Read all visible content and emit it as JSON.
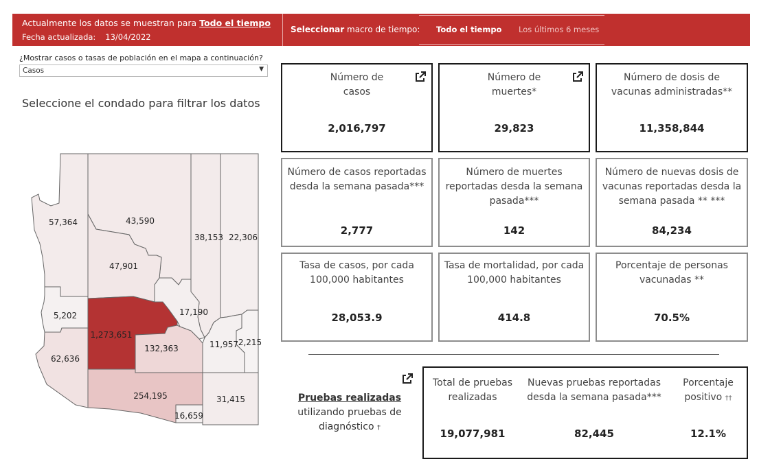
{
  "header": {
    "shown_prefix": "Actualmente los datos se muestran para ",
    "shown_period": "Todo el tiempo",
    "updated_label": "Fecha actualizada:",
    "updated_date": "13/04/2022",
    "select_bold": "Seleccionar",
    "select_rest": " macro de tiempo:",
    "options": [
      "Todo el tiempo",
      "Los últimos 6 meses"
    ],
    "selected_option": "Todo el tiempo"
  },
  "map_mode": {
    "label": "¿Mostrar casos o tasas de población en el mapa a continuación?",
    "value": "Casos"
  },
  "filter_title": "Seleccione el condado para filtrar los datos",
  "map": {
    "counties": [
      {
        "id": "mohave",
        "value": "57,364",
        "fill": "#f3ebeb"
      },
      {
        "id": "coconino",
        "value": "43,590",
        "fill": "#f3eaea"
      },
      {
        "id": "navajo",
        "value": "38,153",
        "fill": "#f3ebeb"
      },
      {
        "id": "apache",
        "value": "22,306",
        "fill": "#f4eeee"
      },
      {
        "id": "yavapai",
        "value": "47,901",
        "fill": "#f2e7e7"
      },
      {
        "id": "la-paz",
        "value": "5,202",
        "fill": "#f5f1f1"
      },
      {
        "id": "maricopa",
        "value": "1,273,651",
        "fill": "#b43333"
      },
      {
        "id": "gila",
        "value": "17,190",
        "fill": "#f4efef"
      },
      {
        "id": "yuma",
        "value": "62,636",
        "fill": "#f1e2e2"
      },
      {
        "id": "pinal",
        "value": "132,363",
        "fill": "#eed7d7"
      },
      {
        "id": "graham",
        "value": "11,957",
        "fill": "#f4f0f0"
      },
      {
        "id": "greenlee",
        "value": "2,215",
        "fill": "#f6f3f3"
      },
      {
        "id": "pima",
        "value": "254,195",
        "fill": "#e8c5c5"
      },
      {
        "id": "santa-cruz",
        "value": "16,659",
        "fill": "#f4efef"
      },
      {
        "id": "cochise",
        "value": "31,415",
        "fill": "#f3ecec"
      }
    ]
  },
  "kpis": [
    {
      "title": "Número de casos",
      "value": "2,016,797"
    },
    {
      "title": "Número de muertes*",
      "value": "29,823"
    },
    {
      "title": "Número de dosis de vacunas administradas**",
      "value": "11,358,844"
    },
    {
      "title": "Número de casos reportadas desda la semana pasada***",
      "value": "2,777"
    },
    {
      "title": "Número de muertes reportadas desda la semana pasada***",
      "value": "142"
    },
    {
      "title": "Número de nuevas dosis de vacunas reportadas desda la semana pasada ** ***",
      "value": "84,234"
    },
    {
      "title": "Tasa de casos, por cada 100,000 habitantes",
      "value": "28,053.9"
    },
    {
      "title": "Tasa de mortalidad, por cada 100,000 habitantes",
      "value": "414.8"
    },
    {
      "title": "Porcentaje de personas vacunadas **",
      "value": "70.5%"
    }
  ],
  "tests": {
    "link_text": "Pruebas realizadas",
    "desc": "utilizando pruebas de diagnóstico",
    "dagger": "†",
    "columns": [
      {
        "title": "Total de pruebas realizadas",
        "value": "19,077,981"
      },
      {
        "title": "Nuevas pruebas reportadas desda la semana pasada***",
        "value": "82,445"
      },
      {
        "title": "Porcentaje positivo",
        "mark": "††",
        "value": "12.1%"
      }
    ]
  }
}
